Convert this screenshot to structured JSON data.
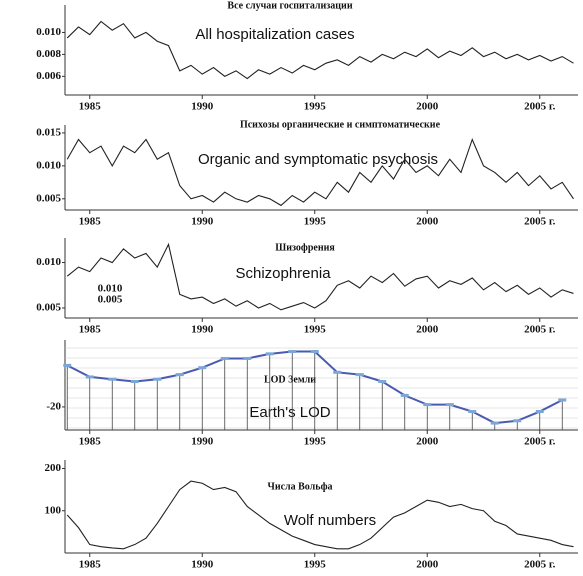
{
  "chart_data": [
    {
      "type": "line",
      "title": "Все случаи госпитализации",
      "annotation": "All hospitalization cases",
      "color": "#222222",
      "x": [
        1984,
        1984.5,
        1985,
        1985.5,
        1986,
        1986.5,
        1987,
        1987.5,
        1988,
        1988.5,
        1989,
        1989.5,
        1990,
        1990.5,
        1991,
        1991.5,
        1992,
        1992.5,
        1993,
        1993.5,
        1994,
        1994.5,
        1995,
        1995.5,
        1996,
        1996.5,
        1997,
        1997.5,
        1998,
        1998.5,
        1999,
        1999.5,
        2000,
        2000.5,
        2001,
        2001.5,
        2002,
        2002.5,
        2003,
        2003.5,
        2004,
        2004.5,
        2005,
        2005.5,
        2006,
        2006.5
      ],
      "values": [
        0.0095,
        0.0105,
        0.0098,
        0.011,
        0.0102,
        0.0108,
        0.0095,
        0.01,
        0.0092,
        0.0088,
        0.0065,
        0.007,
        0.0062,
        0.0068,
        0.006,
        0.0065,
        0.0058,
        0.0066,
        0.0062,
        0.0068,
        0.0063,
        0.007,
        0.0066,
        0.0072,
        0.0075,
        0.007,
        0.0078,
        0.0073,
        0.008,
        0.0076,
        0.0082,
        0.0078,
        0.0085,
        0.0077,
        0.0083,
        0.0079,
        0.0086,
        0.0078,
        0.0082,
        0.0076,
        0.008,
        0.0075,
        0.0079,
        0.0074,
        0.0078,
        0.0072
      ],
      "xlim": [
        1983.9,
        2006.7
      ],
      "xticks": [
        1985,
        1990,
        1995,
        2000,
        {
          "value": 2005,
          "label": "2005 г."
        }
      ],
      "ylim": [
        0.0043,
        0.0125
      ],
      "yticks": [
        {
          "value": 0.01,
          "label": "0.010"
        },
        0.008,
        0.006
      ]
    },
    {
      "type": "line",
      "title": "Психозы органические и симптоматические",
      "annotation": "Organic and symptomatic psychosis",
      "color": "#222222",
      "x": [
        1984,
        1984.5,
        1985,
        1985.5,
        1986,
        1986.5,
        1987,
        1987.5,
        1988,
        1988.5,
        1989,
        1989.5,
        1990,
        1990.5,
        1991,
        1991.5,
        1992,
        1992.5,
        1993,
        1993.5,
        1994,
        1994.5,
        1995,
        1995.5,
        1996,
        1996.5,
        1997,
        1997.5,
        1998,
        1998.5,
        1999,
        1999.5,
        2000,
        2000.5,
        2001,
        2001.5,
        2002,
        2002.5,
        2003,
        2003.5,
        2004,
        2004.5,
        2005,
        2005.5,
        2006,
        2006.5
      ],
      "values": [
        0.011,
        0.014,
        0.012,
        0.013,
        0.01,
        0.013,
        0.012,
        0.014,
        0.011,
        0.012,
        0.007,
        0.005,
        0.0055,
        0.0045,
        0.006,
        0.005,
        0.0045,
        0.0055,
        0.005,
        0.004,
        0.0055,
        0.0045,
        0.006,
        0.005,
        0.0075,
        0.006,
        0.009,
        0.0075,
        0.01,
        0.008,
        0.011,
        0.009,
        0.01,
        0.0085,
        0.011,
        0.009,
        0.014,
        0.01,
        0.009,
        0.0075,
        0.009,
        0.007,
        0.0085,
        0.0065,
        0.0075,
        0.005
      ],
      "xlim": [
        1983.9,
        2006.7
      ],
      "xticks": [
        1985,
        1990,
        1995,
        2000,
        {
          "value": 2005,
          "label": "2005 г."
        }
      ],
      "ylim": [
        0.0033,
        0.0162
      ],
      "yticks": [
        0.015,
        {
          "value": 0.01,
          "label": "0.010"
        },
        0.005
      ]
    },
    {
      "type": "line",
      "title": "Шизофрения",
      "annotation": "Schizophrenia",
      "inset_labels": [
        "0.010",
        "0.005"
      ],
      "color": "#222222",
      "x": [
        1984,
        1984.5,
        1985,
        1985.5,
        1986,
        1986.5,
        1987,
        1987.5,
        1988,
        1988.5,
        1989,
        1989.5,
        1990,
        1990.5,
        1991,
        1991.5,
        1992,
        1992.5,
        1993,
        1993.5,
        1994,
        1994.5,
        1995,
        1995.5,
        1996,
        1996.5,
        1997,
        1997.5,
        1998,
        1998.5,
        1999,
        1999.5,
        2000,
        2000.5,
        2001,
        2001.5,
        2002,
        2002.5,
        2003,
        2003.5,
        2004,
        2004.5,
        2005,
        2005.5,
        2006,
        2006.5
      ],
      "values": [
        0.0085,
        0.0095,
        0.009,
        0.0105,
        0.01,
        0.0115,
        0.0105,
        0.011,
        0.0095,
        0.012,
        0.0065,
        0.006,
        0.0062,
        0.0055,
        0.006,
        0.0052,
        0.0058,
        0.005,
        0.0055,
        0.0048,
        0.0052,
        0.0056,
        0.005,
        0.0058,
        0.0075,
        0.008,
        0.0072,
        0.0085,
        0.0078,
        0.0088,
        0.0074,
        0.0082,
        0.0085,
        0.0072,
        0.008,
        0.0076,
        0.0083,
        0.007,
        0.0078,
        0.0068,
        0.0075,
        0.0065,
        0.0072,
        0.0062,
        0.007,
        0.0066
      ],
      "xlim": [
        1983.9,
        2006.7
      ],
      "xticks": [
        1985,
        1990,
        1995,
        2000,
        {
          "value": 2005,
          "label": "2005 г."
        }
      ],
      "ylim": [
        0.0039,
        0.0127
      ],
      "yticks": [
        {
          "value": 0.01,
          "label": "0.010"
        },
        0.005
      ]
    },
    {
      "type": "stem",
      "title": "LOD Земли",
      "annotation": "Earth's LOD",
      "color": "#4a5ab0",
      "grid": true,
      "x": [
        1984,
        1985,
        1986,
        1987,
        1988,
        1989,
        1990,
        1991,
        1992,
        1993,
        1994,
        1995,
        1996,
        1997,
        1998,
        1999,
        2000,
        2001,
        2002,
        2003,
        2004,
        2005,
        2006
      ],
      "values": [
        -2,
        -7,
        -8,
        -9,
        -8,
        -6,
        -3,
        1,
        1,
        3,
        4,
        4,
        -5,
        -6,
        -9,
        -15,
        -19,
        -19,
        -22,
        -27,
        -26,
        -22,
        -17
      ],
      "xlim": [
        1983.9,
        2006.7
      ],
      "xticks": [
        1985,
        1990,
        1995,
        2000,
        {
          "value": 2005,
          "label": "2005 г."
        }
      ],
      "ylim": [
        -30,
        9
      ],
      "yticks": [
        -20
      ]
    },
    {
      "type": "line",
      "title": "Числа Вольфа",
      "annotation": "Wolf numbers",
      "color": "#222222",
      "x": [
        1984,
        1984.5,
        1985,
        1985.5,
        1986,
        1986.5,
        1987,
        1987.5,
        1988,
        1988.5,
        1989,
        1989.5,
        1990,
        1990.5,
        1991,
        1991.5,
        1992,
        1992.5,
        1993,
        1993.5,
        1994,
        1994.5,
        1995,
        1995.5,
        1996,
        1996.5,
        1997,
        1997.5,
        1998,
        1998.5,
        1999,
        1999.5,
        2000,
        2000.5,
        2001,
        2001.5,
        2002,
        2002.5,
        2003,
        2003.5,
        2004,
        2004.5,
        2005,
        2005.5,
        2006,
        2006.5
      ],
      "values": [
        90,
        60,
        20,
        15,
        12,
        10,
        20,
        35,
        70,
        110,
        150,
        170,
        165,
        150,
        155,
        145,
        110,
        90,
        70,
        55,
        40,
        30,
        20,
        15,
        10,
        10,
        20,
        35,
        60,
        85,
        95,
        110,
        125,
        120,
        110,
        115,
        105,
        100,
        75,
        65,
        45,
        40,
        35,
        30,
        20,
        15
      ],
      "xlim": [
        1983.9,
        2006.7
      ],
      "xticks": [
        1985,
        1990,
        1995,
        2000,
        {
          "value": 2005,
          "label": "2005 г."
        }
      ],
      "ylim": [
        0,
        220
      ],
      "yticks": [
        200,
        100
      ]
    }
  ]
}
